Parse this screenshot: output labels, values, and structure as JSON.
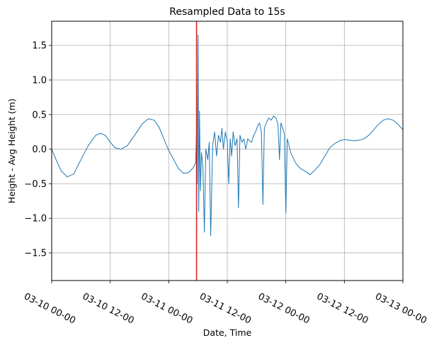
{
  "chart_data": {
    "type": "line",
    "title": "Resampled Data to 15s",
    "xlabel": "Date, Time",
    "ylabel": "Height - Avg Height (m)",
    "x_unit": "hours from 03-10 00:00",
    "xlim": [
      0,
      72
    ],
    "ylim": [
      -1.9,
      1.85
    ],
    "grid": true,
    "x_ticks": [
      {
        "x": 0,
        "label": "03-10 00-00"
      },
      {
        "x": 12,
        "label": "03-10 12-00"
      },
      {
        "x": 24,
        "label": "03-11 00-00"
      },
      {
        "x": 36,
        "label": "03-11 12-00"
      },
      {
        "x": 48,
        "label": "03-12 00-00"
      },
      {
        "x": 60,
        "label": "03-12 12-00"
      },
      {
        "x": 72,
        "label": "03-13 00-00"
      }
    ],
    "y_ticks": [
      {
        "y": 1.5,
        "label": "1.5"
      },
      {
        "y": 1.0,
        "label": "1.0"
      },
      {
        "y": 0.5,
        "label": "0.5"
      },
      {
        "y": 0.0,
        "label": "0.0"
      },
      {
        "y": -0.5,
        "label": "−0.5"
      },
      {
        "y": -1.0,
        "label": "−1.0"
      },
      {
        "y": -1.5,
        "label": "−1.5"
      }
    ],
    "vertical_line": {
      "x": 29.7,
      "color": "#d62728"
    },
    "series": [
      {
        "color": "#1f77b4",
        "points": [
          [
            0,
            0.0
          ],
          [
            1,
            -0.17
          ],
          [
            2,
            -0.32
          ],
          [
            3.2,
            -0.4
          ],
          [
            4.5,
            -0.36
          ],
          [
            6,
            -0.15
          ],
          [
            7.5,
            0.05
          ],
          [
            9,
            0.2
          ],
          [
            10,
            0.23
          ],
          [
            11,
            0.2
          ],
          [
            12,
            0.1
          ],
          [
            13,
            0.02
          ],
          [
            14.2,
            0.0
          ],
          [
            15.5,
            0.05
          ],
          [
            17,
            0.2
          ],
          [
            18.5,
            0.36
          ],
          [
            19.8,
            0.44
          ],
          [
            21,
            0.42
          ],
          [
            22,
            0.32
          ],
          [
            23,
            0.15
          ],
          [
            24,
            -0.02
          ],
          [
            25,
            -0.15
          ],
          [
            26,
            -0.28
          ],
          [
            27,
            -0.35
          ],
          [
            28,
            -0.34
          ],
          [
            29,
            -0.27
          ],
          [
            29.5,
            -0.2
          ],
          [
            29.7,
            0.25
          ],
          [
            29.85,
            -0.5
          ],
          [
            30.0,
            1.65
          ],
          [
            30.15,
            -0.9
          ],
          [
            30.3,
            0.55
          ],
          [
            30.5,
            -0.6
          ],
          [
            30.7,
            -0.05
          ],
          [
            31,
            -0.25
          ],
          [
            31.3,
            -1.2
          ],
          [
            31.6,
            0.0
          ],
          [
            32,
            -0.15
          ],
          [
            32.3,
            0.1
          ],
          [
            32.6,
            -1.25
          ],
          [
            33,
            0.05
          ],
          [
            33.4,
            0.25
          ],
          [
            33.8,
            -0.1
          ],
          [
            34.2,
            0.2
          ],
          [
            34.6,
            0.1
          ],
          [
            34.9,
            0.3
          ],
          [
            35.2,
            0.0
          ],
          [
            35.6,
            0.25
          ],
          [
            36,
            0.1
          ],
          [
            36.3,
            -0.5
          ],
          [
            36.6,
            0.15
          ],
          [
            36.9,
            -0.1
          ],
          [
            37.2,
            0.25
          ],
          [
            37.6,
            0.05
          ],
          [
            38,
            0.15
          ],
          [
            38.3,
            -0.85
          ],
          [
            38.6,
            0.2
          ],
          [
            39,
            0.1
          ],
          [
            39.4,
            0.15
          ],
          [
            39.8,
            0.0
          ],
          [
            40.2,
            0.15
          ],
          [
            40.6,
            0.12
          ],
          [
            41,
            0.1
          ],
          [
            41.4,
            0.2
          ],
          [
            41.8,
            0.25
          ],
          [
            42.2,
            0.33
          ],
          [
            42.6,
            0.38
          ],
          [
            43,
            0.25
          ],
          [
            43.3,
            -0.8
          ],
          [
            43.6,
            0.3
          ],
          [
            44,
            0.38
          ],
          [
            44.5,
            0.45
          ],
          [
            45,
            0.42
          ],
          [
            45.5,
            0.48
          ],
          [
            46,
            0.45
          ],
          [
            46.4,
            0.35
          ],
          [
            46.7,
            -0.15
          ],
          [
            47,
            0.38
          ],
          [
            47.4,
            0.3
          ],
          [
            47.7,
            0.22
          ],
          [
            48,
            -0.92
          ],
          [
            48.3,
            0.15
          ],
          [
            49,
            -0.05
          ],
          [
            50,
            -0.2
          ],
          [
            51,
            -0.28
          ],
          [
            52,
            -0.32
          ],
          [
            53,
            -0.37
          ],
          [
            53.5,
            -0.33
          ],
          [
            54,
            -0.3
          ],
          [
            55,
            -0.22
          ],
          [
            56,
            -0.1
          ],
          [
            57,
            0.02
          ],
          [
            58,
            0.08
          ],
          [
            59,
            0.12
          ],
          [
            60,
            0.14
          ],
          [
            61,
            0.13
          ],
          [
            62,
            0.12
          ],
          [
            63,
            0.13
          ],
          [
            64,
            0.15
          ],
          [
            65,
            0.2
          ],
          [
            66,
            0.28
          ],
          [
            67,
            0.36
          ],
          [
            68,
            0.42
          ],
          [
            69,
            0.44
          ],
          [
            70,
            0.42
          ],
          [
            71,
            0.36
          ],
          [
            72,
            0.28
          ]
        ]
      }
    ]
  }
}
